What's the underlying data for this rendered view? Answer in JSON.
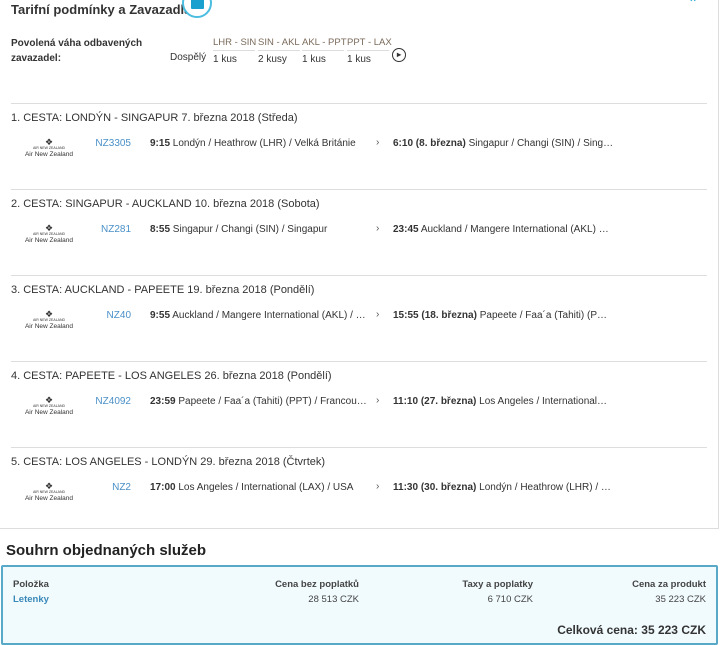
{
  "panel": {
    "title": "Tarifní podmínky a Zavazadla",
    "icon": "luggage-icon",
    "collapse_icon": "chevron-up-icon"
  },
  "baggage": {
    "label": "Povolená váha odbavených zavazadel:",
    "passenger": "Dospělý",
    "columns": [
      {
        "route": "LHR - SIN",
        "value": "1 kus"
      },
      {
        "route": "SIN - AKL",
        "value": "2 kusy"
      },
      {
        "route": "AKL - PPT",
        "value": "1 kus"
      },
      {
        "route": "PPT - LAX",
        "value": "1 kus"
      }
    ],
    "next_icon": "arrow-right-circle-icon"
  },
  "airline": {
    "logo_small": "AIR NEW ZEALAND",
    "name": "Air New Zealand"
  },
  "legs": [
    {
      "title": "1. CESTA: LONDÝN - SINGAPUR 7. března 2018 (Středa)",
      "flight": "NZ3305",
      "dep_time": "9:15",
      "dep": "Londýn / Heathrow (LHR) / Velká Británie",
      "arr_time": "6:10",
      "arr_date": "(8. března)",
      "arr": "Singapur / Changi (SIN) / Sing…"
    },
    {
      "title": "2. CESTA: SINGAPUR - AUCKLAND 10. března 2018 (Sobota)",
      "flight": "NZ281",
      "dep_time": "8:55",
      "dep": "Singapur / Changi (SIN) / Singapur",
      "arr_time": "23:45",
      "arr_date": "",
      "arr": "Auckland / Mangere International (AKL) …"
    },
    {
      "title": "3. CESTA: AUCKLAND - PAPEETE 19. března 2018 (Pondělí)",
      "flight": "NZ40",
      "dep_time": "9:55",
      "dep": "Auckland / Mangere International (AKL) / …",
      "arr_time": "15:55",
      "arr_date": "(18. března)",
      "arr": "Papeete / Faa´a (Tahiti) (P…"
    },
    {
      "title": "4. CESTA: PAPEETE - LOS ANGELES 26. března 2018 (Pondělí)",
      "flight": "NZ4092",
      "dep_time": "23:59",
      "dep": "Papeete / Faa´a (Tahiti) (PPT) / Francou…",
      "arr_time": "11:10",
      "arr_date": "(27. března)",
      "arr": "Los Angeles / International…"
    },
    {
      "title": "5. CESTA: LOS ANGELES - LONDÝN 29. března 2018 (Čtvrtek)",
      "flight": "NZ2",
      "dep_time": "17:00",
      "dep": "Los Angeles / International (LAX) / USA",
      "arr_time": "11:30",
      "arr_date": "(30. března)",
      "arr": "Londýn / Heathrow (LHR) / …"
    }
  ],
  "summary": {
    "title": "Souhrn objednaných služeb",
    "headers": [
      "Položka",
      "Cena bez poplatků",
      "Taxy a poplatky",
      "Cena za produkt"
    ],
    "row": {
      "item": "Letenky",
      "base": "28 513 CZK",
      "taxes": "6 710 CZK",
      "total": "35 223 CZK"
    },
    "total_label": "Celková cena:",
    "total_value": "35 223",
    "total_currency": "CZK"
  },
  "colors": {
    "accent": "#1aa0cf",
    "link": "#4a90c8",
    "summary_bg": "#f1fbfe",
    "summary_border": "#58a8c8"
  }
}
